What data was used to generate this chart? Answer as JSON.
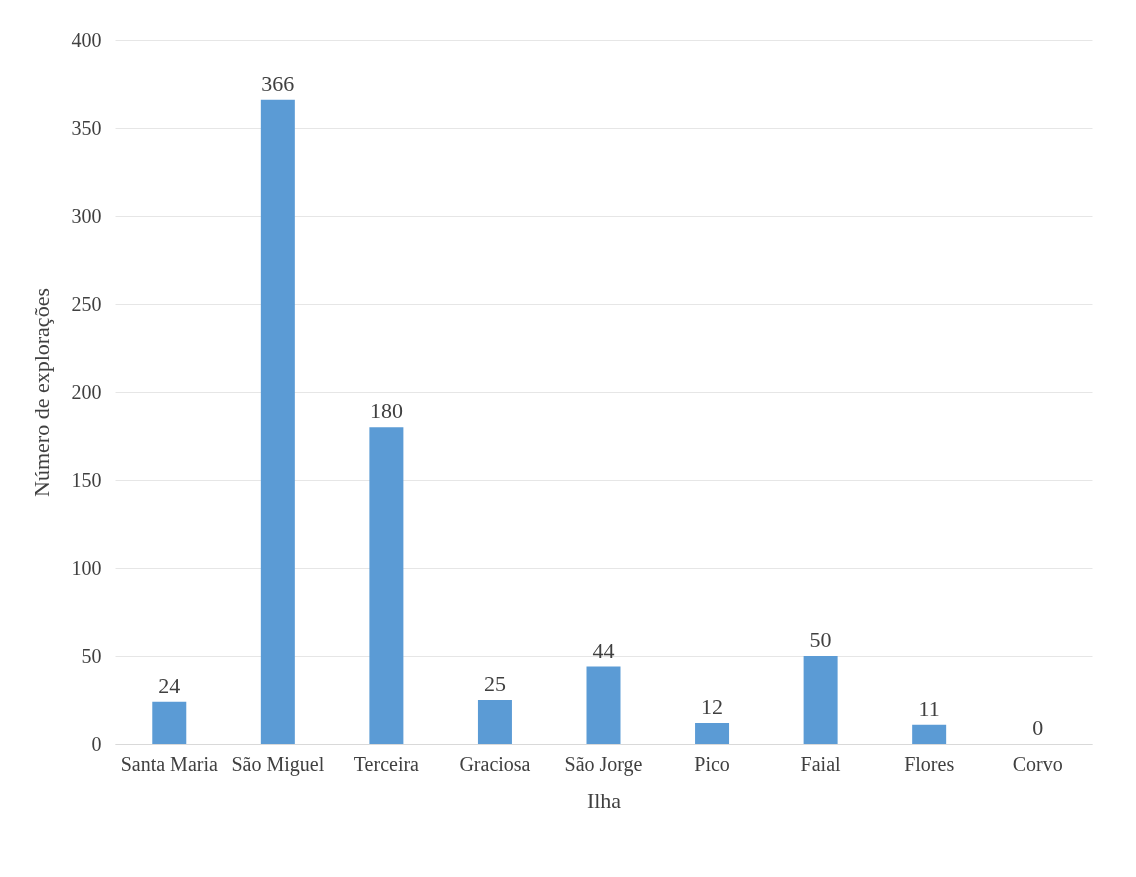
{
  "chart_data": {
    "type": "bar",
    "xlabel": "Ilha",
    "ylabel": "Número de explorações",
    "categories": [
      "Santa Maria",
      "São Miguel",
      "Terceira",
      "Graciosa",
      "São Jorge",
      "Pico",
      "Faial",
      "Flores",
      "Corvo"
    ],
    "values": [
      24,
      366,
      180,
      25,
      44,
      12,
      50,
      11,
      0
    ],
    "color": "#5b9bd5",
    "ylim": [
      0,
      400
    ],
    "yticks": [
      0,
      50,
      100,
      150,
      200,
      250,
      300,
      350,
      400
    ],
    "grid": "y",
    "data_labels": true
  }
}
